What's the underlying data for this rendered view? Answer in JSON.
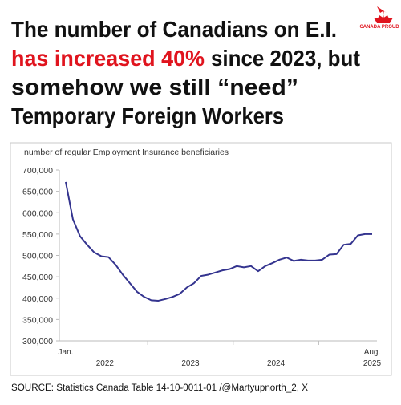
{
  "header": {
    "line1": "The number of Canadians on E.I.",
    "highlight": "has increased 40%",
    "line2_rest": "since 2023, but",
    "line3": "somehow we still “need”",
    "line4": "Temporary Foreign Workers"
  },
  "logo": "CANADA PROUD",
  "source": "SOURCE: Statistics Canada Table 14-10-0011-01 /@Martyupnorth_2, X",
  "chart_data": {
    "type": "line",
    "y_label": "number of regular Employment Insurance beneficiaries",
    "categories": [
      "Jan.",
      null,
      null,
      null,
      null,
      null,
      null,
      null,
      null,
      null,
      null,
      null,
      null,
      null,
      null,
      null,
      null,
      null,
      null,
      null,
      null,
      null,
      null,
      null,
      null,
      null,
      null,
      null,
      null,
      null,
      null,
      null,
      null,
      null,
      null,
      null,
      null,
      null,
      null,
      null,
      null,
      null,
      null,
      "Aug."
    ],
    "years": [
      "2022",
      "2023",
      "2024",
      "2025"
    ],
    "series": [
      {
        "name": "regular beneficiaries",
        "color": "#34348f",
        "values": [
          672000,
          585000,
          545000,
          525000,
          507000,
          498000,
          496000,
          478000,
          455000,
          435000,
          415000,
          403000,
          395000,
          394000,
          398000,
          403000,
          410000,
          425000,
          435000,
          452000,
          455000,
          460000,
          465000,
          468000,
          475000,
          472000,
          475000,
          463000,
          475000,
          482000,
          490000,
          495000,
          487000,
          490000,
          488000,
          488000,
          490000,
          502000,
          503000,
          525000,
          527000,
          547000,
          550000,
          550000
        ]
      }
    ],
    "ylim": [
      300000,
      700000
    ],
    "yticks": [
      {
        "value": 300000,
        "label": "300,000"
      },
      {
        "value": 350000,
        "label": "350,000"
      },
      {
        "value": 400000,
        "label": "400,000"
      },
      {
        "value": 450000,
        "label": "450,000"
      },
      {
        "value": 500000,
        "label": "500,000"
      },
      {
        "value": 550000,
        "label": "550,000"
      },
      {
        "value": 600000,
        "label": "600,000"
      },
      {
        "value": 650000,
        "label": "650,000"
      },
      {
        "value": 700000,
        "label": "700,000"
      }
    ],
    "grid": false
  }
}
